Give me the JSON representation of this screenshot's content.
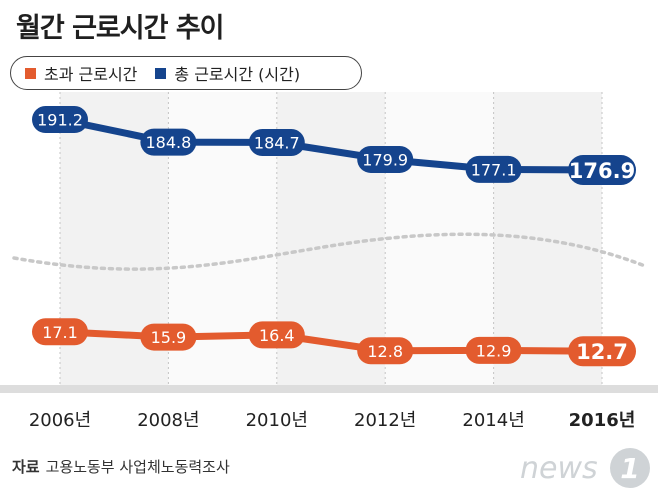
{
  "title": "월간 근로시간 추이",
  "legend": [
    {
      "label": "초과 근로시간",
      "color": "#e35b2e"
    },
    {
      "label": "총 근로시간 (시간)",
      "color": "#15448d"
    }
  ],
  "source": {
    "label": "자료",
    "text": "고용노동부 사업체노동력조사"
  },
  "logo": {
    "brand": "news",
    "mark": "1"
  },
  "chart_data": {
    "type": "line",
    "categories": [
      "2006년",
      "2008년",
      "2010년",
      "2012년",
      "2014년",
      "2016년"
    ],
    "highlight_last": true,
    "series": [
      {
        "name": "총 근로시간 (시간)",
        "color": "#15448d",
        "values": [
          191.2,
          184.8,
          184.7,
          179.9,
          177.1,
          176.9
        ],
        "labels": [
          "191.2",
          "184.8",
          "184.7",
          "179.9",
          "177.1",
          "176.9"
        ]
      },
      {
        "name": "초과 근로시간",
        "color": "#e35b2e",
        "values": [
          17.1,
          15.9,
          16.4,
          12.8,
          12.9,
          12.7
        ],
        "labels": [
          "17.1",
          "15.9",
          "16.4",
          "12.8",
          "12.9",
          "12.7"
        ]
      }
    ],
    "axis_break": true,
    "grid": false
  }
}
